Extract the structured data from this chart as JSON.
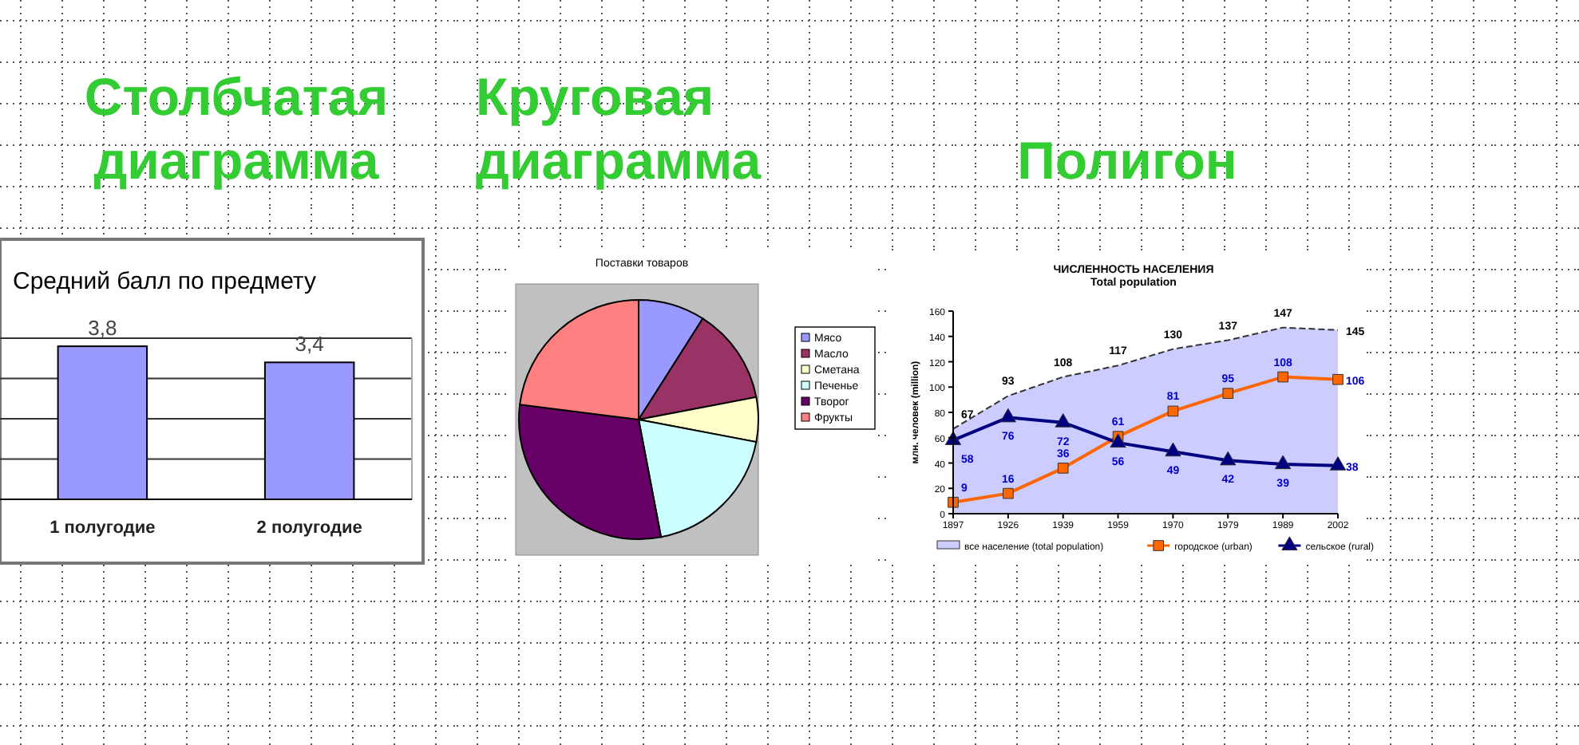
{
  "chart_data": [
    {
      "type": "bar",
      "title": "Столбчатая диаграмма",
      "subtitle": "Средний балл по предмету",
      "categories": [
        "1 полугодие",
        "2 полугодие"
      ],
      "values": [
        3.8,
        3.4
      ],
      "value_labels": [
        "3,8",
        "3,4"
      ],
      "color": "#9999ff",
      "ylim": [
        0,
        4
      ],
      "yticks": [
        {
          "value": 0,
          "label": null
        },
        {
          "value": 1,
          "label": null
        },
        {
          "value": 2,
          "label": null
        },
        {
          "value": 3,
          "label": null
        },
        {
          "value": 4,
          "label": null
        }
      ],
      "grid": "y",
      "tick_labels": "x"
    },
    {
      "type": "pie",
      "title": "Круговая диаграмма",
      "subtitle": "Поставки товаров",
      "categories": [
        "Мясо",
        "Масло",
        "Сметана",
        "Печенье",
        "Творог",
        "Фрукты"
      ],
      "values": [
        9,
        13,
        6,
        19,
        30,
        23
      ],
      "colors": [
        "#9999ff",
        "#993366",
        "#ffffcc",
        "#ccffff",
        "#660066",
        "#ff8080"
      ],
      "legend": "right"
    },
    {
      "type": "line",
      "title": "Полигон",
      "subtitle": "ЧИСЛЕННОСТЬ НАСЕЛЕНИЯ",
      "annotations": [
        "Total population"
      ],
      "ylabel": "млн. человек (million)",
      "categories": [
        "1897",
        "1926",
        "1939",
        "1959",
        "1970",
        "1979",
        "1989",
        "2002"
      ],
      "ylim": [
        0,
        160
      ],
      "yticks": [
        0,
        20,
        40,
        60,
        80,
        100,
        120,
        140,
        160
      ],
      "data_labels": true,
      "legend": "bottom",
      "series": [
        {
          "type": "area",
          "name": "все население (total population)",
          "color": "#ccccff",
          "values": [
            67,
            93,
            108,
            117,
            130,
            137,
            147,
            145
          ]
        },
        {
          "name": "городское (urban)",
          "color": "#ff6600",
          "marker": "square",
          "values": [
            9,
            16,
            36,
            61,
            81,
            95,
            108,
            106
          ]
        },
        {
          "name": "сельское (rural)",
          "color": "#000080",
          "marker": "triangle",
          "values": [
            58,
            76,
            72,
            56,
            49,
            42,
            39,
            38
          ]
        }
      ]
    }
  ]
}
